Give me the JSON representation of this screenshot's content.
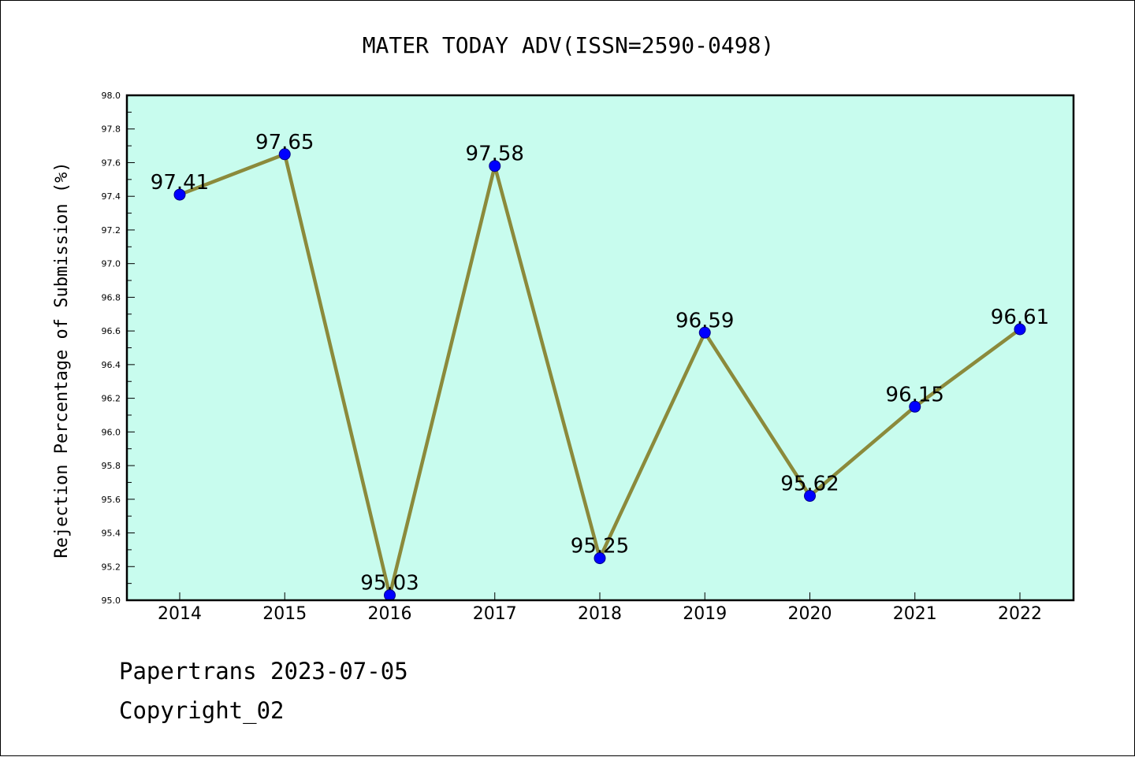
{
  "chart_data": {
    "type": "line",
    "title": "MATER TODAY ADV(ISSN=2590-0498)",
    "ylabel": "Rejection Percentage of Submission (%)",
    "xlabel": "",
    "categories": [
      "2014",
      "2015",
      "2016",
      "2017",
      "2018",
      "2019",
      "2020",
      "2021",
      "2022"
    ],
    "values": [
      97.41,
      97.65,
      95.03,
      97.58,
      95.25,
      96.59,
      95.62,
      96.15,
      96.61
    ],
    "data_labels": [
      "97.41",
      "97.65",
      "95.03",
      "97.58",
      "95.25",
      "96.59",
      "95.62",
      "96.15",
      "96.61"
    ],
    "ylim": [
      95.0,
      98.0
    ],
    "yticks": [
      "95.0",
      "95.2",
      "95.4",
      "95.6",
      "95.8",
      "96.0",
      "96.2",
      "96.4",
      "96.6",
      "96.8",
      "97.0",
      "97.2",
      "97.4",
      "97.6",
      "97.8",
      "98.0"
    ],
    "grid": false,
    "colors": {
      "plot_background": "#c8fcee",
      "line": "#8b8a3b",
      "marker": "#0000ff"
    }
  },
  "footer": {
    "line1": "Papertrans 2023-07-05",
    "line2": "Copyright_02"
  }
}
